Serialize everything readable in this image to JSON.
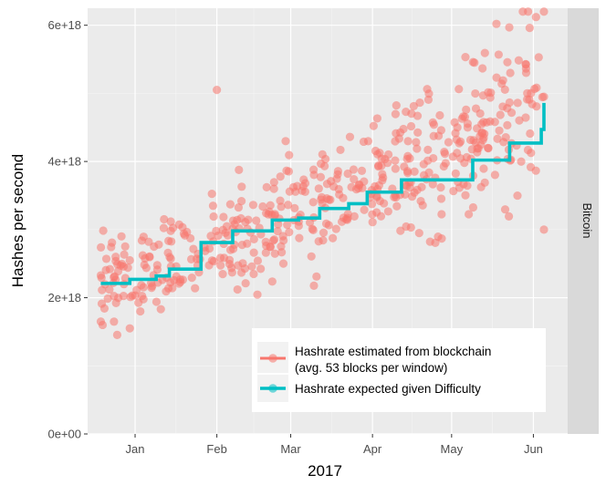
{
  "chart_data": {
    "type": "scatter",
    "xlabel": "2017",
    "ylabel": "Hashes per second",
    "facet_label": "Bitcoin",
    "x_domain": [
      "2016-12-14",
      "2017-06-14"
    ],
    "ylim": [
      0,
      6.25e+18
    ],
    "x_ticks": [
      {
        "label": "Jan",
        "date": "2017-01-01"
      },
      {
        "label": "Feb",
        "date": "2017-02-01"
      },
      {
        "label": "Mar",
        "date": "2017-03-01"
      },
      {
        "label": "Apr",
        "date": "2017-04-01"
      },
      {
        "label": "May",
        "date": "2017-05-01"
      },
      {
        "label": "Jun",
        "date": "2017-06-01"
      }
    ],
    "y_ticks": [
      {
        "label": "0e+00",
        "value": 0
      },
      {
        "label": "2e+18",
        "value": 2e+18
      },
      {
        "label": "4e+18",
        "value": 4e+18
      },
      {
        "label": "6e+18",
        "value": 6e+18
      }
    ],
    "grid": true,
    "legend": {
      "position": "inside-bottom-right",
      "entries": [
        {
          "label_lines": [
            "Hashrate estimated from blockchain",
            "(avg. 53 blocks per window)"
          ],
          "color": "#f8766d"
        },
        {
          "label_lines": [
            "Hashrate expected given Difficulty"
          ],
          "color": "#00bfc4"
        }
      ]
    },
    "series": [
      {
        "name": "Hashrate estimated from blockchain (avg. 53 blocks per window)",
        "kind": "points",
        "color": "#f8766d",
        "x_start": "2016-12-19",
        "x_end": "2017-06-05",
        "y_base_start": 2.25e+18,
        "y_base_end": 4.75e+18,
        "y_spread_start": 3e+17,
        "y_spread_end": 5.5e+17,
        "count": 520,
        "seed": 7,
        "outliers": [
          {
            "x": "2016-12-19",
            "y": 1.65e+18
          },
          {
            "x": "2016-12-30",
            "y": 1.55e+18
          },
          {
            "x": "2017-02-01",
            "y": 5.05e+18
          },
          {
            "x": "2017-05-18",
            "y": 6.02e+18
          },
          {
            "x": "2017-05-28",
            "y": 6.2e+18
          },
          {
            "x": "2017-05-30",
            "y": 6.2e+18
          },
          {
            "x": "2017-06-02",
            "y": 6.12e+18
          },
          {
            "x": "2017-06-05",
            "y": 6.2e+18
          },
          {
            "x": "2017-06-05",
            "y": 3e+18
          }
        ]
      },
      {
        "name": "Hashrate expected given Difficulty",
        "kind": "step",
        "color": "#00bfc4",
        "steps": [
          {
            "date": "2016-12-19",
            "value": 2.21e+18
          },
          {
            "date": "2016-12-30",
            "value": 2.27e+18
          },
          {
            "date": "2017-01-09",
            "value": 2.32e+18
          },
          {
            "date": "2017-01-14",
            "value": 2.42e+18
          },
          {
            "date": "2017-01-26",
            "value": 2.81e+18
          },
          {
            "date": "2017-02-07",
            "value": 2.98e+18
          },
          {
            "date": "2017-02-22",
            "value": 3.14e+18
          },
          {
            "date": "2017-03-04",
            "value": 3.17e+18
          },
          {
            "date": "2017-03-12",
            "value": 3.31e+18
          },
          {
            "date": "2017-03-23",
            "value": 3.38e+18
          },
          {
            "date": "2017-03-30",
            "value": 3.55e+18
          },
          {
            "date": "2017-04-12",
            "value": 3.73e+18
          },
          {
            "date": "2017-05-09",
            "value": 4.02e+18
          },
          {
            "date": "2017-05-23",
            "value": 4.27e+18
          },
          {
            "date": "2017-06-04",
            "value": 4.47e+18
          },
          {
            "date": "2017-06-05",
            "value": 4.86e+18
          }
        ]
      }
    ]
  }
}
